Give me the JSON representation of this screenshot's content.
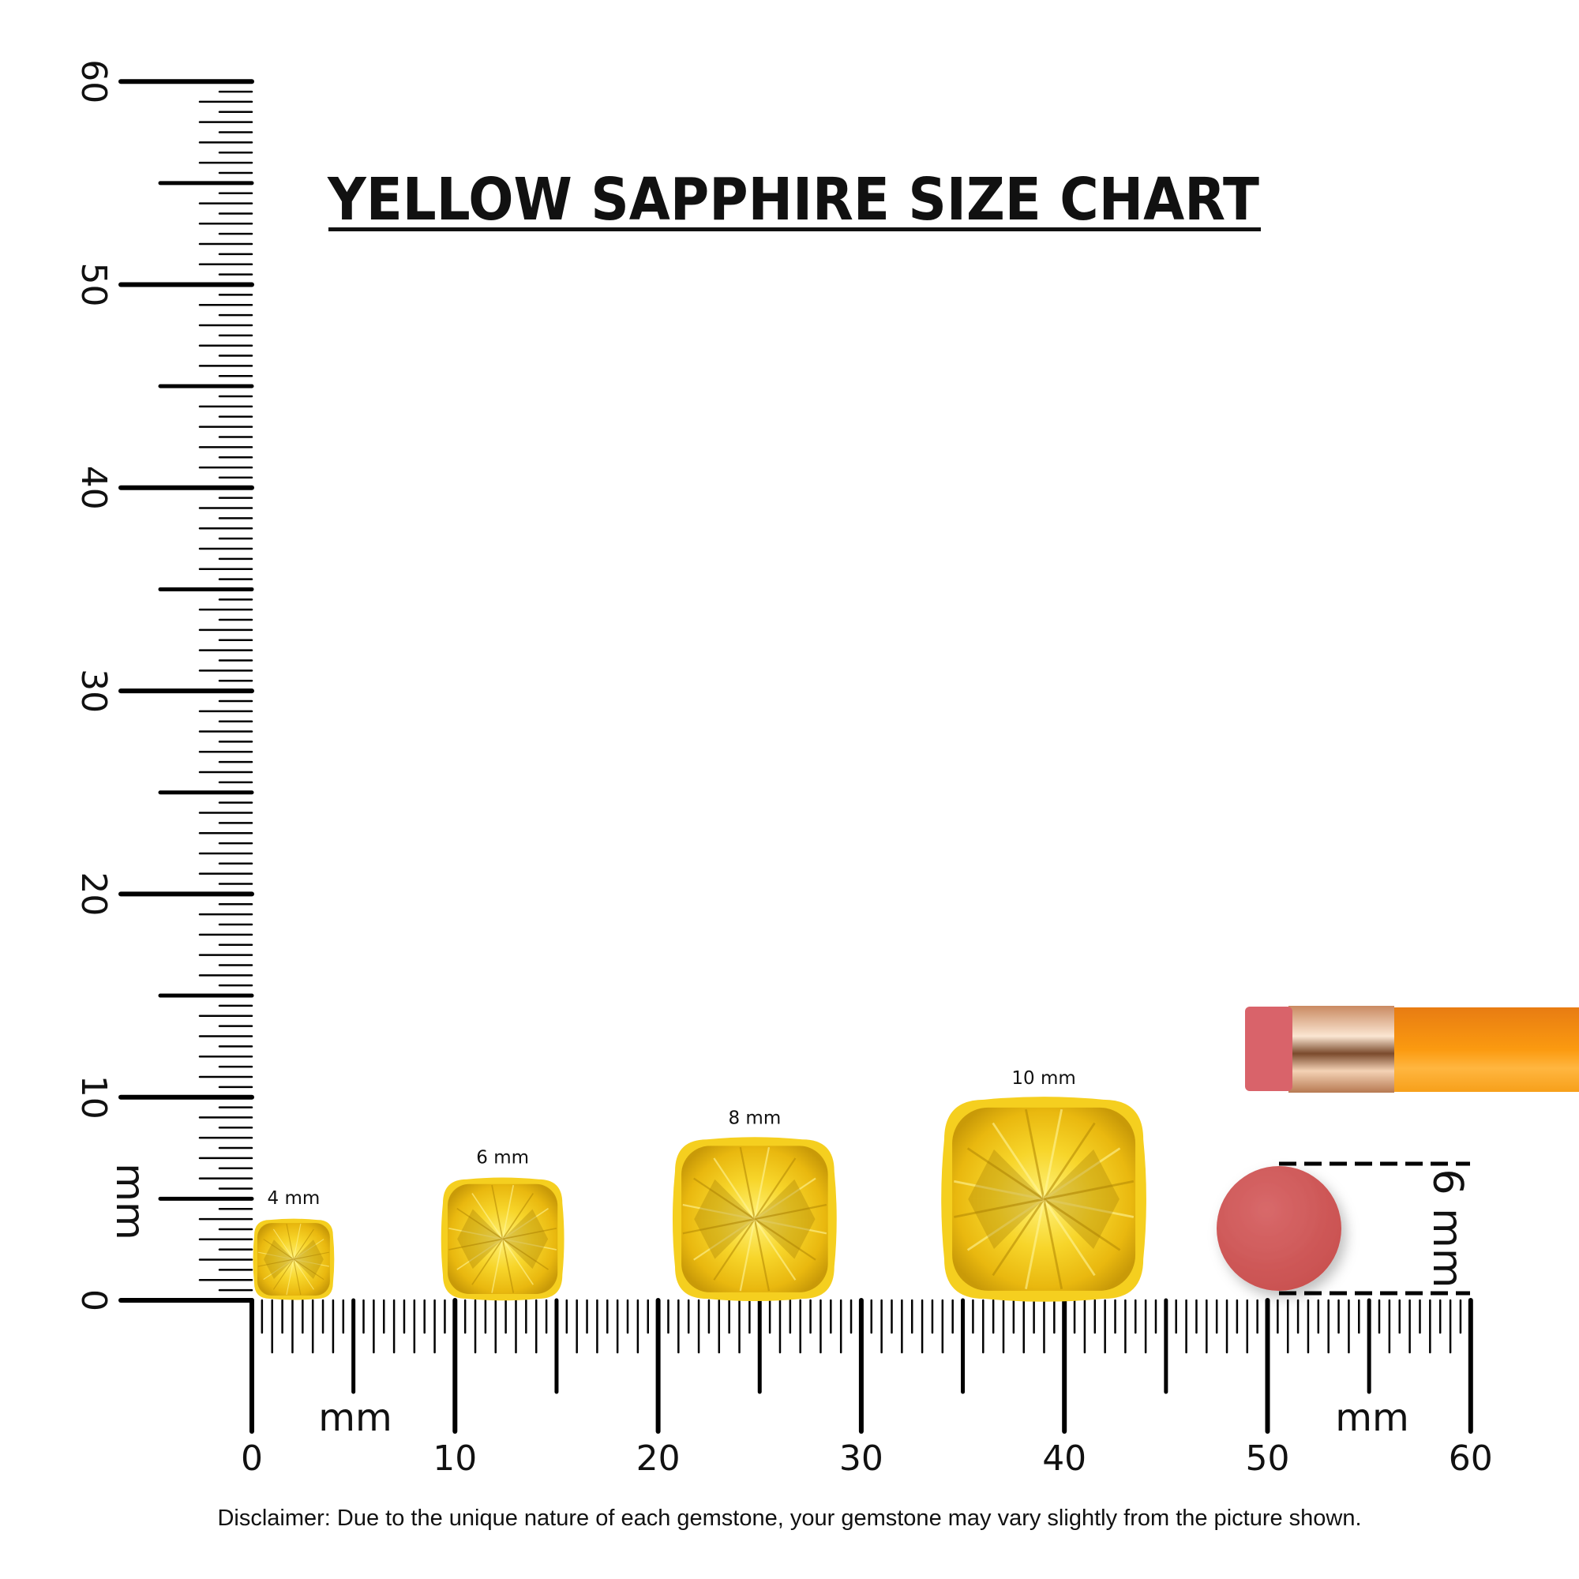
{
  "chart_data": {
    "type": "size-comparison",
    "title": "YELLOW SAPPHIRE SIZE CHART",
    "unit_label": "mm",
    "x_axis": {
      "range": [
        0,
        60
      ],
      "tick_labels": [
        "0",
        "10",
        "20",
        "30",
        "40",
        "50",
        "60"
      ],
      "label": "mm"
    },
    "y_axis": {
      "range": [
        0,
        60
      ],
      "tick_labels": [
        "0",
        "10",
        "20",
        "30",
        "40",
        "50",
        "60"
      ],
      "label": "mm"
    },
    "gemstones": [
      {
        "label": "4 mm",
        "size_mm": 4
      },
      {
        "label": "6 mm",
        "size_mm": 6
      },
      {
        "label": "8 mm",
        "size_mm": 8
      },
      {
        "label": "10 mm",
        "size_mm": 10
      }
    ],
    "reference": {
      "object": "pencil eraser",
      "label": "6 mm",
      "size_mm": 6
    },
    "colors": {
      "gem": "#f5cf1f",
      "eraser": "#d35a5c",
      "pencil": "#f7941d",
      "ferrule": "#d9a37a",
      "ruler": "#000000"
    }
  },
  "disclaimer": "Disclaimer: Due to the unique nature of each gemstone, your gemstone may vary slightly from the picture shown."
}
